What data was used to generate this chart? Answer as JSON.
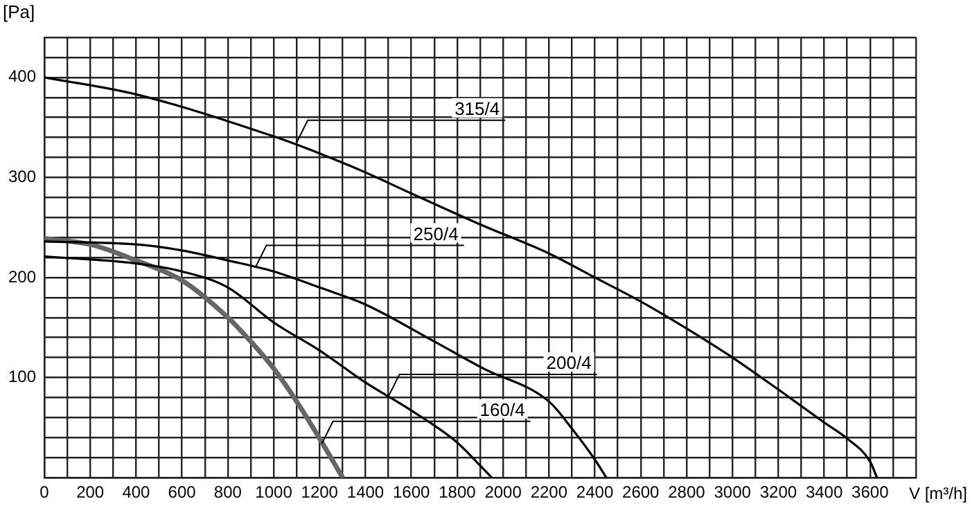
{
  "chart_data": {
    "type": "line",
    "xlabel": "V [m³/h]",
    "ylabel": "[Pa]",
    "marker": "none",
    "line_style": "solid",
    "grid": true,
    "legend": false,
    "xlim": [
      0,
      3800
    ],
    "ylim": [
      0,
      440
    ],
    "xticks": [
      0,
      {
        "value": 100,
        "label": null
      },
      200,
      {
        "value": 300,
        "label": null
      },
      400,
      {
        "value": 500,
        "label": null
      },
      600,
      {
        "value": 700,
        "label": null
      },
      800,
      {
        "value": 900,
        "label": null
      },
      1000,
      {
        "value": 1100,
        "label": null
      },
      1200,
      {
        "value": 1300,
        "label": null
      },
      1400,
      {
        "value": 1500,
        "label": null
      },
      1600,
      {
        "value": 1700,
        "label": null
      },
      1800,
      {
        "value": 1900,
        "label": null
      },
      2000,
      {
        "value": 2100,
        "label": null
      },
      2200,
      {
        "value": 2300,
        "label": null
      },
      2400,
      {
        "value": 2500,
        "label": null
      },
      2600,
      {
        "value": 2700,
        "label": null
      },
      2800,
      {
        "value": 2900,
        "label": null
      },
      3000,
      {
        "value": 3100,
        "label": null
      },
      3200,
      {
        "value": 3300,
        "label": null
      },
      3400,
      {
        "value": 3500,
        "label": null
      },
      3600,
      {
        "value": 3700,
        "label": null
      },
      {
        "value": 3800,
        "label": null
      }
    ],
    "yticks": [
      {
        "value": 0,
        "label": null
      },
      {
        "value": 20,
        "label": null
      },
      {
        "value": 40,
        "label": null
      },
      {
        "value": 60,
        "label": null
      },
      {
        "value": 80,
        "label": null
      },
      100,
      {
        "value": 120,
        "label": null
      },
      {
        "value": 140,
        "label": null
      },
      {
        "value": 160,
        "label": null
      },
      {
        "value": 180,
        "label": null
      },
      200,
      {
        "value": 220,
        "label": null
      },
      {
        "value": 240,
        "label": null
      },
      {
        "value": 260,
        "label": null
      },
      {
        "value": 280,
        "label": null
      },
      300,
      {
        "value": 320,
        "label": null
      },
      {
        "value": 340,
        "label": null
      },
      {
        "value": 360,
        "label": null
      },
      {
        "value": 380,
        "label": null
      },
      400,
      {
        "value": 420,
        "label": null
      },
      {
        "value": 440,
        "label": null
      }
    ],
    "series": [
      {
        "color": "#000000",
        "x": [
          0,
          400,
          1000,
          1200,
          1400,
          1600,
          1900,
          2200,
          2400,
          2600,
          2800,
          3000,
          3200,
          3400,
          3500,
          3600,
          3630
        ],
        "values": [
          400,
          383,
          341,
          324,
          305,
          284,
          253,
          224,
          200,
          176,
          149,
          120,
          88,
          55,
          39,
          16,
          0
        ]
      },
      {
        "color": "#000000",
        "x": [
          0,
          400,
          600,
          800,
          1000,
          1200,
          1400,
          1700,
          1914,
          2200,
          2300,
          2400,
          2450
        ],
        "values": [
          236,
          233,
          227,
          217,
          206,
          190,
          173,
          136,
          109,
          76,
          49,
          18,
          0
        ]
      },
      {
        "color": "#000000",
        "x": [
          0,
          400,
          600,
          800,
          1000,
          1200,
          1400,
          1600,
          1800,
          1900,
          1950
        ],
        "values": [
          221,
          214,
          206,
          190,
          155,
          127,
          95,
          67,
          35,
          12,
          0
        ]
      },
      {
        "color": "#666666",
        "x": [
          0,
          200,
          400,
          600,
          800,
          900,
          1000,
          1100,
          1200,
          1300
        ],
        "values": [
          239,
          233,
          217,
          197,
          160,
          136,
          109,
          76,
          39,
          0
        ]
      }
    ],
    "annotations": [
      {
        "text": "315/4",
        "x": 1100,
        "y": 335
      },
      {
        "text": "250/4",
        "x": 920,
        "y": 210
      },
      {
        "text": "200/4",
        "x": 1500,
        "y": 81
      },
      {
        "text": "160/4",
        "x": 1210,
        "y": 34
      }
    ]
  }
}
